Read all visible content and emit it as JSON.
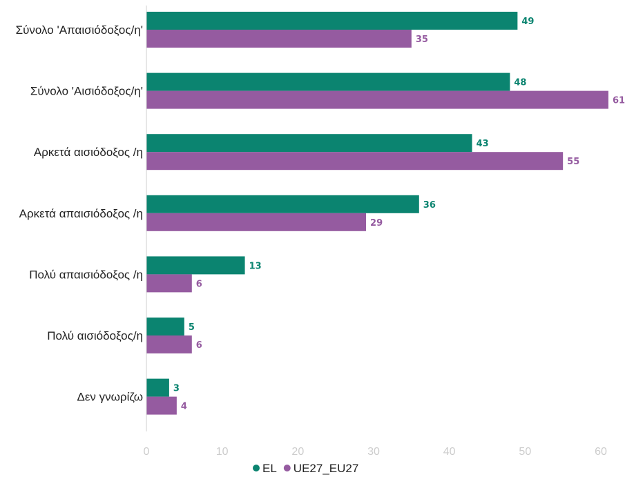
{
  "chart_data": {
    "type": "bar",
    "orientation": "horizontal",
    "categories": [
      "Σύνολο 'Απαισιόδοξος/η'",
      "Σύνολο 'Αισιόδοξος/η'",
      "Αρκετά αισιόδοξος /η",
      "Αρκετά απαισιόδοξος /η",
      "Πολύ απαισιόδοξος /η",
      "Πολύ αισιόδοξος/η",
      "Δεν γνωρίζω"
    ],
    "series": [
      {
        "name": "EL",
        "color": "#0b8470",
        "values": [
          49,
          48,
          43,
          36,
          13,
          5,
          3
        ]
      },
      {
        "name": "UE27_EU27",
        "color": "#955ba0",
        "values": [
          35,
          61,
          55,
          29,
          6,
          6,
          4
        ]
      }
    ],
    "xlim": [
      0,
      60
    ],
    "xticks": [
      0,
      10,
      20,
      30,
      40,
      50,
      60
    ],
    "grid": false,
    "legend": "bottom-center",
    "data_labels": true
  }
}
